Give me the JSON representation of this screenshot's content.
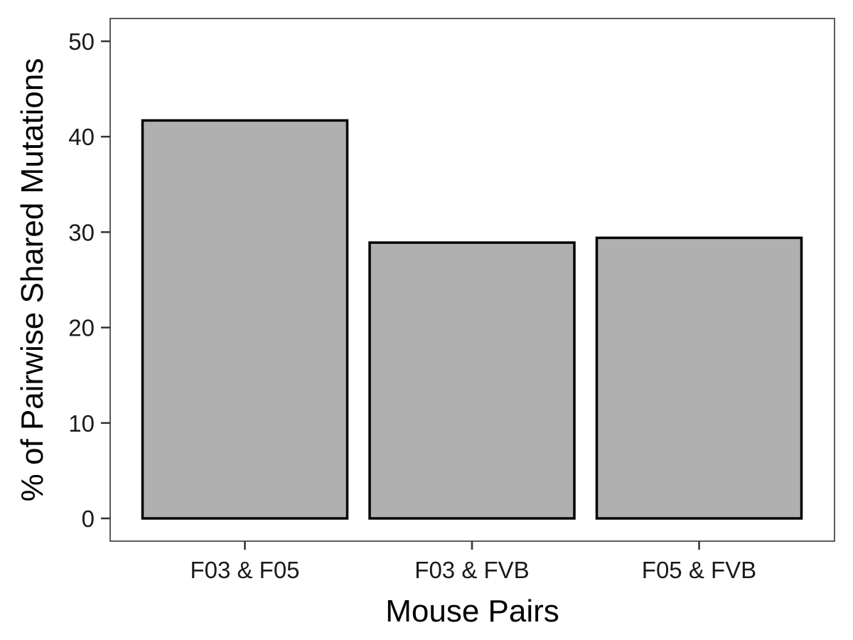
{
  "chart_data": {
    "type": "bar",
    "title": "",
    "xlabel": "Mouse Pairs",
    "ylabel": "% of Pairwise Shared Mutations",
    "categories": [
      "F03 & F05",
      "F03 & FVB",
      "F05 & FVB"
    ],
    "values": [
      41.7,
      28.9,
      29.4
    ],
    "ylim": [
      0,
      52.5
    ],
    "yticks": [
      0,
      10,
      20,
      30,
      40,
      50
    ],
    "grid": false,
    "legend": "none",
    "colors": {
      "bar_fill": "#b0b0b0",
      "bar_stroke": "#000000",
      "panel_border": "#333333",
      "tick_color": "#333333",
      "text": "#000000"
    }
  }
}
